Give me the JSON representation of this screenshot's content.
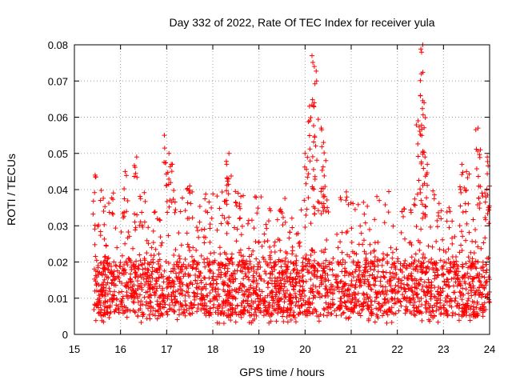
{
  "chart_data": {
    "type": "scatter",
    "title": "Day 332 of 2022, Rate Of TEC Index for receiver yula",
    "xlabel": "GPS time / hours",
    "ylabel": "ROTI / TECUs",
    "xlim": [
      15,
      24
    ],
    "ylim": [
      0,
      0.08
    ],
    "x_ticks": [
      "15",
      "16",
      "17",
      "18",
      "19",
      "20",
      "21",
      "22",
      "23",
      "24"
    ],
    "y_ticks": [
      "0",
      "0.01",
      "0.02",
      "0.03",
      "0.04",
      "0.05",
      "0.06",
      "0.07",
      "0.08"
    ],
    "grid": true,
    "marker": "+",
    "color": "#ff0000",
    "series": [
      {
        "name": "ROTI",
        "x_range": [
          15.42,
          24.0
        ],
        "baseline_range": [
          0.005,
          0.02
        ],
        "typical_max": 0.04,
        "spikes": [
          {
            "x": 15.45,
            "y": 0.044
          },
          {
            "x": 16.1,
            "y": 0.045
          },
          {
            "x": 16.35,
            "y": 0.049
          },
          {
            "x": 16.95,
            "y": 0.055
          },
          {
            "x": 17.05,
            "y": 0.05
          },
          {
            "x": 17.1,
            "y": 0.047
          },
          {
            "x": 17.5,
            "y": 0.041
          },
          {
            "x": 18.35,
            "y": 0.05
          },
          {
            "x": 18.3,
            "y": 0.047
          },
          {
            "x": 18.55,
            "y": 0.039
          },
          {
            "x": 20.0,
            "y": 0.05
          },
          {
            "x": 20.1,
            "y": 0.059
          },
          {
            "x": 20.15,
            "y": 0.077
          },
          {
            "x": 20.2,
            "y": 0.074
          },
          {
            "x": 20.25,
            "y": 0.07
          },
          {
            "x": 20.2,
            "y": 0.064
          },
          {
            "x": 20.35,
            "y": 0.057
          },
          {
            "x": 20.4,
            "y": 0.053
          },
          {
            "x": 20.45,
            "y": 0.048
          },
          {
            "x": 22.45,
            "y": 0.059
          },
          {
            "x": 22.5,
            "y": 0.066
          },
          {
            "x": 22.52,
            "y": 0.072
          },
          {
            "x": 22.55,
            "y": 0.08
          },
          {
            "x": 22.58,
            "y": 0.064
          },
          {
            "x": 22.6,
            "y": 0.049
          },
          {
            "x": 22.65,
            "y": 0.047
          },
          {
            "x": 23.4,
            "y": 0.047
          },
          {
            "x": 23.5,
            "y": 0.045
          },
          {
            "x": 23.75,
            "y": 0.057
          },
          {
            "x": 23.8,
            "y": 0.051
          },
          {
            "x": 23.95,
            "y": 0.049
          },
          {
            "x": 24.0,
            "y": 0.041
          }
        ]
      }
    ]
  }
}
